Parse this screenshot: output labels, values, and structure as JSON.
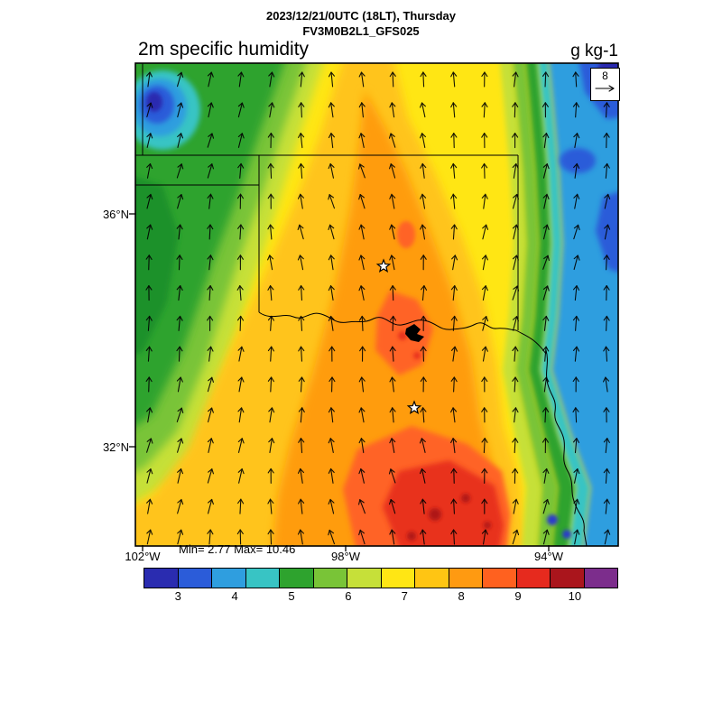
{
  "header": {
    "datetime_line": "2023/12/21/0UTC (18LT), Thursday",
    "model_line": "FV3M0B2L1_GFS025",
    "variable_title": "2m specific humidity",
    "units": "g kg-1"
  },
  "map": {
    "min_max_label": "Min= 2.77 Max= 10.46",
    "lat_ticks": [
      {
        "label": "36°N"
      },
      {
        "label": "32°N"
      }
    ],
    "lon_ticks": [
      {
        "label": "102°W"
      },
      {
        "label": "98°W"
      },
      {
        "label": "94°W"
      }
    ],
    "wind_reference": {
      "value": "8"
    }
  },
  "colorbar": {
    "tick_labels": [
      "3",
      "4",
      "5",
      "6",
      "7",
      "8",
      "9",
      "10"
    ],
    "tick_positions_pct": [
      7.3,
      19.3,
      31.3,
      43.3,
      55.2,
      67.2,
      79.2,
      91.2
    ],
    "colors": [
      "#2A2CB0",
      "#2B5CD9",
      "#2F9EDF",
      "#38C4C4",
      "#2EA32E",
      "#79C437",
      "#C6E039",
      "#FFE614",
      "#FFC513",
      "#FF9A11",
      "#FF611F",
      "#E62A1E",
      "#AA151C",
      "#7C2D8C"
    ]
  },
  "chart_data": {
    "type": "heatmap",
    "title": "2m specific humidity",
    "units": "g kg-1",
    "valid_time": "2023/12/21/0UTC (18LT), Thursday",
    "model_run": "FV3M0B2L1_GFS025",
    "field_min": 2.77,
    "field_max": 10.46,
    "colorbar_tick_values": [
      3,
      4,
      5,
      6,
      7,
      8,
      9,
      10
    ],
    "colorbar_colors": [
      "#2A2CB0",
      "#2B5CD9",
      "#2F9EDF",
      "#38C4C4",
      "#2EA32E",
      "#79C437",
      "#C6E039",
      "#FFE614",
      "#FFC513",
      "#FF9A11",
      "#FF611F",
      "#E62A1E",
      "#AA151C",
      "#7C2D8C"
    ],
    "x_axis_ticks": [
      "102°W",
      "98°W",
      "94°W"
    ],
    "y_axis_ticks": [
      "36°N",
      "32°N"
    ],
    "wind_reference_value": 8,
    "overlays": [
      "wind vectors (northward arrows)",
      "state borders (Texas/Oklahoma region)",
      "two city stars",
      "lake outline"
    ],
    "region_values_gkg": [
      {
        "area": "northwest (TX/OK panhandles)",
        "approx": "4-6 green, local minimum ~3 (blue patch)"
      },
      {
        "area": "center and south (central TX)",
        "approx": "7-9 orange-red, maxima >9 dark red"
      },
      {
        "area": "east / northeast (E OK, MO)",
        "approx": "3.5-5 cyan-green, blue patches near 3"
      },
      {
        "area": "southeast corner",
        "approx": "4-5 cyan-green with small blue spots"
      }
    ]
  }
}
